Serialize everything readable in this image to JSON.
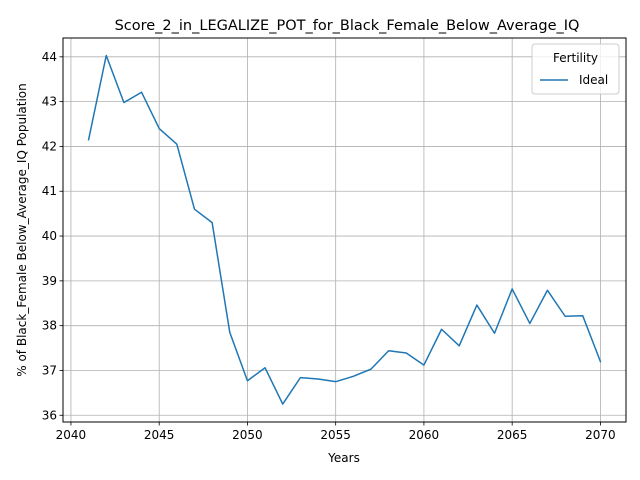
{
  "chart_data": {
    "type": "line",
    "title": "Score_2_in_LEGALIZE_POT_for_Black_Female_Below_Average_IQ",
    "xlabel": "Years",
    "ylabel": "% of Black_Female Below_Average_IQ Population",
    "xlim": [
      2039.55,
      2071.45
    ],
    "ylim": [
      35.85,
      44.42
    ],
    "xticks": [
      2040,
      2045,
      2050,
      2055,
      2060,
      2065,
      2070
    ],
    "yticks": [
      36,
      37,
      38,
      39,
      40,
      41,
      42,
      43,
      44
    ],
    "grid": true,
    "legend": {
      "title": "Fertility",
      "placement": "top-right"
    },
    "series": [
      {
        "name": "Ideal",
        "color": "#1f77b4",
        "x": [
          2041,
          2042,
          2043,
          2044,
          2045,
          2046,
          2047,
          2048,
          2049,
          2050,
          2051,
          2052,
          2053,
          2054,
          2055,
          2056,
          2057,
          2058,
          2059,
          2060,
          2061,
          2062,
          2063,
          2064,
          2065,
          2066,
          2067,
          2068,
          2069,
          2070
        ],
        "y": [
          42.15,
          44.03,
          42.98,
          43.21,
          42.4,
          42.05,
          40.6,
          40.3,
          37.85,
          36.77,
          37.06,
          36.25,
          36.84,
          36.81,
          36.75,
          36.87,
          37.03,
          37.44,
          37.39,
          37.12,
          37.92,
          37.55,
          38.46,
          37.83,
          38.82,
          38.05,
          38.79,
          38.21,
          38.22,
          37.2
        ]
      }
    ]
  }
}
